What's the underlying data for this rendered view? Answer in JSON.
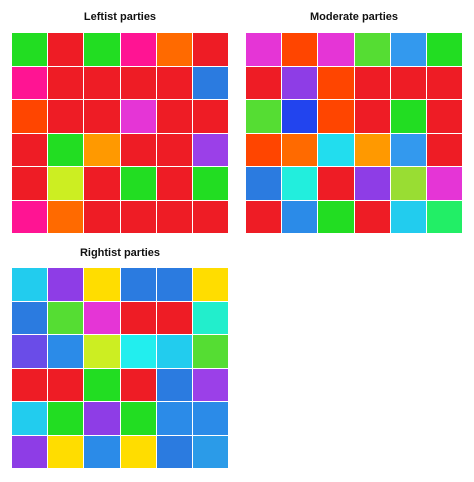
{
  "panels": {
    "leftist": {
      "title": "Leftist parties",
      "colors": [
        [
          "#22dd22",
          "#ee1c25",
          "#22dd22",
          "#ff1493",
          "#ff6a00",
          "#ee1c25"
        ],
        [
          "#ff1493",
          "#ee1c25",
          "#ee1c25",
          "#ee1c25",
          "#ee1c25",
          "#2b7be0"
        ],
        [
          "#ff4500",
          "#ee1c25",
          "#ee1c25",
          "#e535d6",
          "#ee1c25",
          "#ee1c25"
        ],
        [
          "#ee1c25",
          "#22dd22",
          "#ff9900",
          "#ee1c25",
          "#ee1c25",
          "#9b40e8"
        ],
        [
          "#ee1c25",
          "#ccee22",
          "#ee1c25",
          "#22dd22",
          "#ee1c25",
          "#22dd22"
        ],
        [
          "#ff1493",
          "#ff6a00",
          "#ee1c25",
          "#ee1c25",
          "#ee1c25",
          "#ee1c25"
        ]
      ]
    },
    "moderate": {
      "title": "Moderate parties",
      "colors": [
        [
          "#e535d6",
          "#ff4500",
          "#e535d6",
          "#55dd33",
          "#3399ee",
          "#22dd22"
        ],
        [
          "#ee1c25",
          "#8e3de6",
          "#ff4500",
          "#ee1c25",
          "#ee1c25",
          "#ee1c25"
        ],
        [
          "#55dd33",
          "#2244ee",
          "#ff4500",
          "#ee1c25",
          "#22dd22",
          "#ee1c25"
        ],
        [
          "#ff4500",
          "#ff6a00",
          "#22ddee",
          "#ff9900",
          "#3399ee",
          "#ee1c25"
        ],
        [
          "#2b7be0",
          "#22eedd",
          "#ee1c25",
          "#8e3de6",
          "#99dd33",
          "#e535d6"
        ],
        [
          "#ee1c25",
          "#2b8be8",
          "#22dd22",
          "#ee1c25",
          "#22ccee",
          "#22ee66"
        ]
      ]
    },
    "rightist": {
      "title": "Rightist parties",
      "colors": [
        [
          "#22ccee",
          "#8e3de6",
          "#ffdd00",
          "#2b7be0",
          "#2b7be0",
          "#ffdd00"
        ],
        [
          "#2b7be0",
          "#55dd33",
          "#e535d6",
          "#ee1c25",
          "#ee1c25",
          "#22eecc"
        ],
        [
          "#6a4ce8",
          "#2b8be8",
          "#ccee22",
          "#22eeee",
          "#22ccee",
          "#55dd33"
        ],
        [
          "#ee1c25",
          "#ee1c25",
          "#22dd22",
          "#ee1c25",
          "#2b7be0",
          "#9b40e8"
        ],
        [
          "#22ccee",
          "#22dd22",
          "#8e3de6",
          "#22dd22",
          "#2b8be8",
          "#2b8be8"
        ],
        [
          "#8e3de6",
          "#ffdd00",
          "#2b8be8",
          "#ffdd00",
          "#2b7be0",
          "#2b9be8"
        ]
      ]
    }
  }
}
